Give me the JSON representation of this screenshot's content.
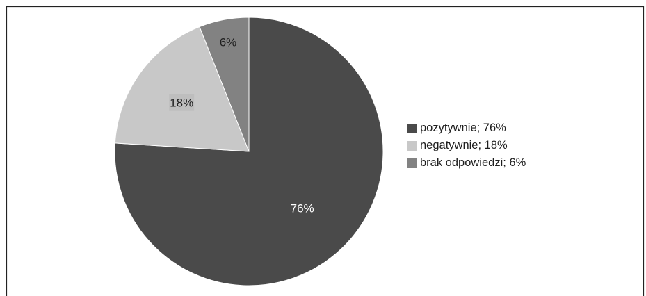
{
  "chart_data": {
    "type": "pie",
    "title": "",
    "slices": [
      {
        "label": "pozytywnie",
        "value": 76,
        "data_label": "76%",
        "legend_label": "pozytywnie; 76%",
        "color": "#4a4a4a",
        "label_bg": "#4a4a4a",
        "label_color": "#ffffff"
      },
      {
        "label": "negatywnie",
        "value": 18,
        "data_label": "18%",
        "legend_label": "negatywnie; 18%",
        "color": "#c8c8c8",
        "label_bg": "#bebebe",
        "label_color": "#1e1e1e"
      },
      {
        "label": "brak odpowiedzi",
        "value": 6,
        "data_label": "6%",
        "legend_label": "brak odpowiedzi; 6%",
        "color": "#828282",
        "label_bg": "#828282",
        "label_color": "#1e1e1e"
      }
    ],
    "start_angle": "12 o'clock",
    "direction": "clockwise",
    "legend_position": "right",
    "frame_color": "#222222",
    "background": "#ffffff"
  }
}
